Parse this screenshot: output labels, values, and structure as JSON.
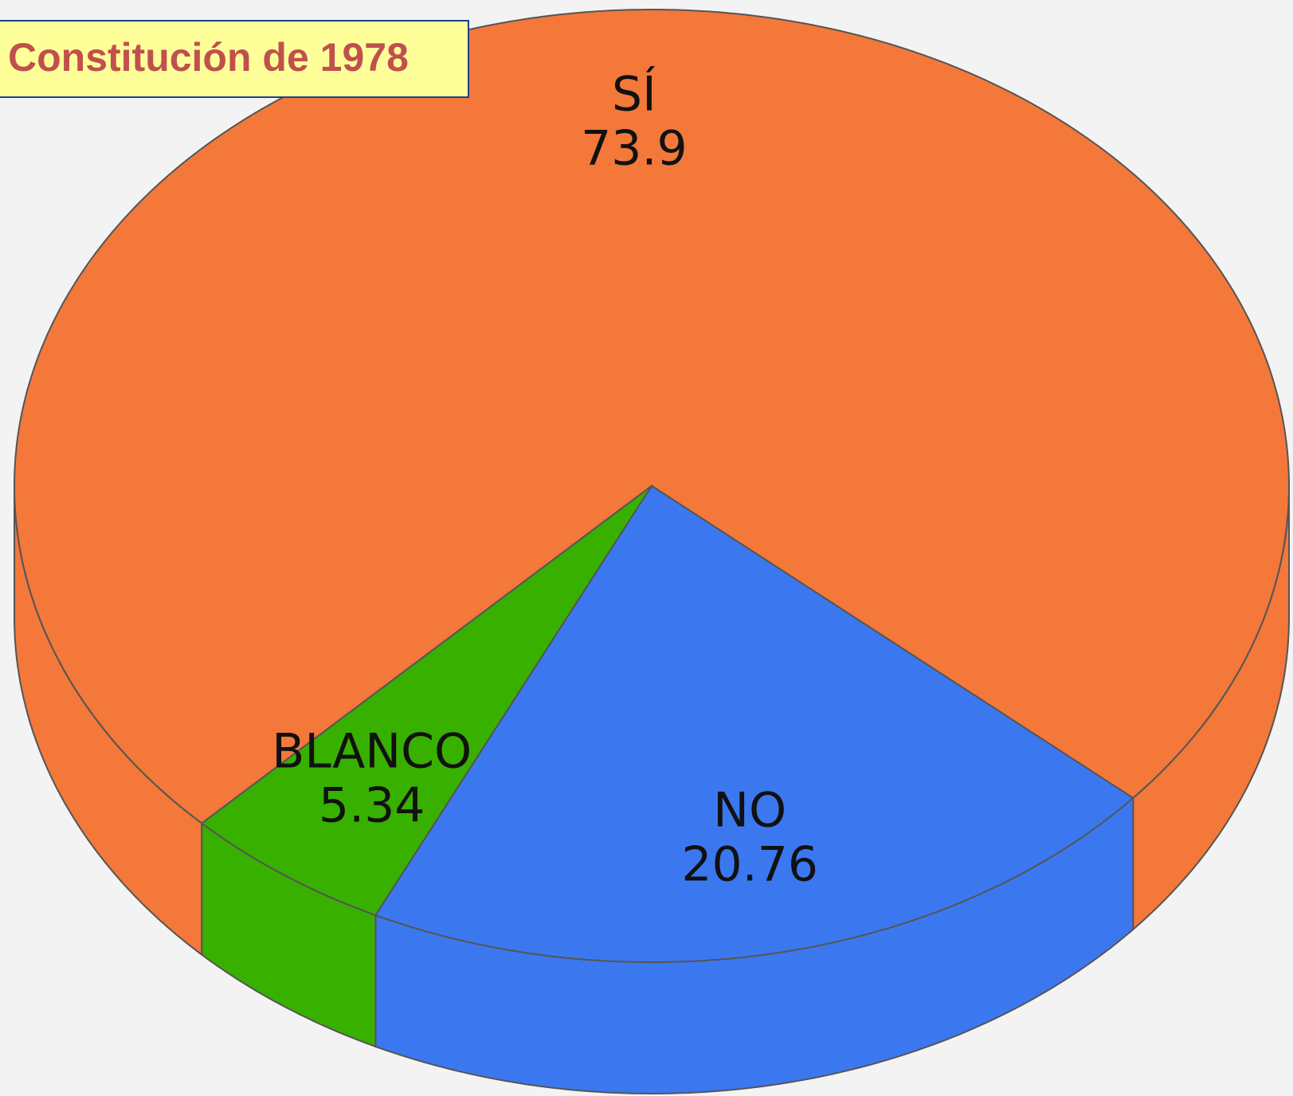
{
  "chart_data": {
    "type": "pie",
    "title": "Constitución de 1978",
    "categories": [
      "SÍ",
      "NO",
      "BLANCO"
    ],
    "values": [
      73.9,
      20.76,
      5.34
    ],
    "colors": [
      "#f3783a",
      "#3b78f0",
      "#38b000"
    ]
  }
}
